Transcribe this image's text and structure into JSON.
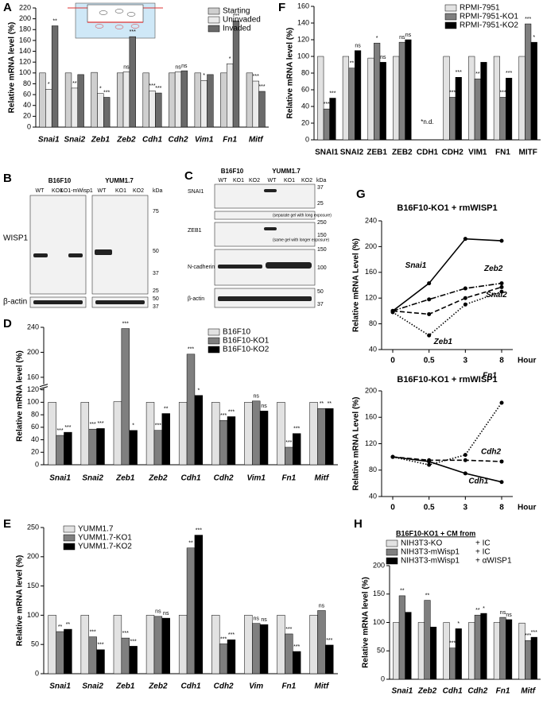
{
  "chart_data": [
    {
      "type": "bar",
      "panel": "A",
      "ylabel": "Relative mRNA level (%)",
      "legend": "upper right",
      "categories": [
        "Snai1",
        "Snai2",
        "Zeb1",
        "Zeb2",
        "Cdh1",
        "Cdh2",
        "Vim1",
        "Fn1",
        "Mitf"
      ],
      "ylim": [
        0,
        220
      ],
      "yticks": [
        0,
        20,
        40,
        60,
        80,
        100,
        120,
        140,
        160,
        180,
        200,
        220
      ],
      "series": [
        {
          "name": "Starting",
          "color": "#cfcfcf",
          "values": [
            100,
            100,
            101,
            100,
            100,
            100,
            100,
            100,
            100
          ],
          "sig": [
            null,
            null,
            null,
            null,
            null,
            null,
            null,
            null,
            null
          ]
        },
        {
          "name": "Uninvaded",
          "color": "#ebebeb",
          "values": [
            70,
            72,
            62,
            102,
            67,
            102,
            86,
            117,
            85
          ],
          "sig": [
            "*",
            "**",
            "*",
            "ns",
            "***",
            "ns",
            "*",
            "*",
            "***"
          ]
        },
        {
          "name": "Invaded",
          "color": "#6a6a6a",
          "values": [
            187,
            97,
            55,
            167,
            63,
            104,
            97,
            196,
            66
          ],
          "sig": [
            "**",
            null,
            "***",
            "***",
            "***",
            "ns",
            null,
            "***",
            "***"
          ]
        }
      ]
    },
    {
      "type": "bar",
      "panel": "D",
      "ylabel": "Relative mRNA level (%)",
      "legend": "upper right",
      "categories": [
        "Snai1",
        "Snai2",
        "Zeb1",
        "Zeb2",
        "Cdh1",
        "Cdh2",
        "Vim1",
        "Fn1",
        "Mitf"
      ],
      "ylim": [
        0,
        240
      ],
      "ybreak": [
        120,
        140
      ],
      "yticks": [
        0,
        20,
        40,
        60,
        80,
        100,
        120,
        160,
        200,
        240
      ],
      "series": [
        {
          "name": "B16F10",
          "color": "#e2e2e2",
          "values": [
            100,
            100,
            101,
            100,
            100,
            100,
            100,
            100,
            100
          ],
          "sig": [
            null,
            null,
            null,
            null,
            null,
            null,
            null,
            null,
            null
          ]
        },
        {
          "name": "B16F10-KO1",
          "color": "#7f7f7f",
          "values": [
            47,
            57,
            238,
            55,
            197,
            71,
            102,
            28,
            90
          ],
          "sig": [
            "***",
            "***",
            "***",
            "***",
            "***",
            "***",
            "ns",
            "***",
            "**"
          ]
        },
        {
          "name": "B16F10-KO2",
          "color": "#000000",
          "values": [
            52,
            58,
            55,
            82,
            111,
            77,
            86,
            50,
            90
          ],
          "sig": [
            "***",
            "***",
            "*",
            "**",
            "*",
            "***",
            "ns",
            "***",
            "**"
          ]
        }
      ]
    },
    {
      "type": "bar",
      "panel": "E",
      "ylabel": "Relative mRNA level (%)",
      "legend": "upper left",
      "categories": [
        "Snai1",
        "Snai2",
        "Zeb1",
        "Zeb2",
        "Cdh1",
        "Cdh2",
        "Vim",
        "Fn1",
        "Mitf"
      ],
      "ylim": [
        0,
        250
      ],
      "yticks": [
        0,
        50,
        100,
        150,
        200,
        250
      ],
      "series": [
        {
          "name": "YUMM1.7",
          "color": "#e2e2e2",
          "values": [
            100,
            100,
            100,
            100,
            100,
            100,
            100,
            100,
            100
          ],
          "sig": [
            null,
            null,
            null,
            null,
            null,
            null,
            null,
            null,
            null
          ]
        },
        {
          "name": "YUMM1.7-KO1",
          "color": "#7f7f7f",
          "values": [
            72,
            63,
            61,
            98,
            215,
            51,
            86,
            68,
            108
          ],
          "sig": [
            "**",
            "***",
            "***",
            "ns",
            "**",
            "***",
            "ns",
            "***",
            "ns"
          ]
        },
        {
          "name": "YUMM1.7-KO2",
          "color": "#000000",
          "values": [
            76,
            41,
            47,
            95,
            237,
            58,
            84,
            38,
            49
          ],
          "sig": [
            "**",
            "***",
            "***",
            "ns",
            "***",
            "***",
            "ns",
            "***",
            "***"
          ]
        }
      ]
    },
    {
      "type": "bar",
      "panel": "F",
      "ylabel": "Relative mRNA level (%)",
      "legend": "upper right",
      "categories": [
        "SNAI1",
        "SNAI2",
        "ZEB1",
        "ZEB2",
        "CDH1",
        "CDH2",
        "VIM1",
        "FN1",
        "MITF"
      ],
      "category_notes": [
        null,
        null,
        null,
        null,
        "*n.d.",
        null,
        null,
        null,
        null
      ],
      "ylim": [
        0,
        160
      ],
      "yticks": [
        0,
        20,
        40,
        60,
        80,
        100,
        120,
        140,
        160
      ],
      "series": [
        {
          "name": "RPMI-7951",
          "color": "#e2e2e2",
          "values": [
            100,
            100,
            98,
            100,
            null,
            100,
            100,
            100,
            100
          ],
          "sig": [
            null,
            null,
            null,
            null,
            null,
            null,
            null,
            null,
            null
          ]
        },
        {
          "name": "RPMI-7951-KO1",
          "color": "#7f7f7f",
          "values": [
            37,
            86,
            116,
            117,
            null,
            51,
            73,
            51,
            139
          ],
          "sig": [
            "***",
            "**",
            "*",
            "ns",
            null,
            "***",
            "**",
            "***",
            "***"
          ]
        },
        {
          "name": "RPMI-7951-KO2",
          "color": "#000000",
          "values": [
            50,
            107,
            93,
            120,
            null,
            75,
            93,
            74,
            117
          ],
          "sig": [
            "***",
            "ns",
            "ns",
            "ns",
            null,
            "***",
            null,
            "***",
            "*"
          ]
        }
      ]
    },
    {
      "type": "line",
      "panel": "G",
      "title": "B16F10-KO1 + rmWISP1",
      "ylabel": "Relative mRNA Level (%)",
      "xlabel": "Hour",
      "x": [
        "0",
        "0.5",
        "3",
        "8"
      ],
      "ylim": [
        40,
        240
      ],
      "yticks": [
        40,
        80,
        120,
        160,
        200,
        240
      ],
      "series": [
        {
          "name": "Snai1",
          "color": "#000000",
          "dash": "solid",
          "values": [
            100,
            143,
            212,
            209
          ]
        },
        {
          "name": "Zeb2",
          "color": "#000000",
          "dash": "dashdot",
          "values": [
            100,
            118,
            135,
            143
          ]
        },
        {
          "name": "Snai2",
          "color": "#000000",
          "dash": "dashed",
          "values": [
            100,
            95,
            120,
            137
          ]
        },
        {
          "name": "Zeb1",
          "color": "#000000",
          "dash": "dotted",
          "values": [
            98,
            62,
            110,
            130
          ]
        }
      ]
    },
    {
      "type": "line",
      "title": "B16F10-KO1 + rmWISP1",
      "ylabel": "Relative mRNA Level (%)",
      "xlabel": "Hour",
      "x": [
        "0",
        "0.5",
        "3",
        "8"
      ],
      "ylim": [
        40,
        200
      ],
      "yticks": [
        40,
        80,
        120,
        160,
        200
      ],
      "series": [
        {
          "name": "Fn1",
          "color": "#000000",
          "dash": "dotted",
          "values": [
            100,
            88,
            103,
            182
          ]
        },
        {
          "name": "Cdh2",
          "color": "#000000",
          "dash": "dashed",
          "values": [
            100,
            95,
            95,
            93
          ]
        },
        {
          "name": "Cdh1",
          "color": "#000000",
          "dash": "solid",
          "values": [
            100,
            93,
            75,
            62
          ]
        }
      ]
    },
    {
      "type": "bar",
      "panel": "H",
      "title": "B16F10-KO1 + CM from",
      "ylabel": "Relative mRNA level (%)",
      "legend": "top",
      "categories": [
        "Snai1",
        "Zeb2",
        "Cdh1",
        "Cdh2",
        "Fn1",
        "Mitf"
      ],
      "ylim": [
        0,
        200
      ],
      "yticks": [
        0,
        50,
        100,
        150,
        200
      ],
      "series": [
        {
          "name": "NIH3T3-KO",
          "treatment": "+ IC",
          "color": "#e2e2e2",
          "values": [
            100,
            100,
            100,
            100,
            100,
            99
          ],
          "sig": [
            null,
            null,
            null,
            null,
            null,
            null
          ]
        },
        {
          "name": "NIH3T3-mWisp1",
          "treatment": "+ IC",
          "color": "#7f7f7f",
          "values": [
            147,
            139,
            55,
            113,
            109,
            68
          ],
          "sig": [
            "**",
            "**",
            "***",
            "**",
            "ns",
            "***"
          ]
        },
        {
          "name": "NIH3T3-mWisp1",
          "treatment": "+ αWISP1",
          "color": "#000000",
          "values": [
            118,
            92,
            89,
            116,
            105,
            74
          ],
          "sig": [
            null,
            null,
            "*",
            "*",
            "ns",
            "***"
          ]
        }
      ]
    }
  ],
  "blots": [
    {
      "panel": "B",
      "groups": [
        "B16F10",
        "YUMM1.7"
      ],
      "lanes": [
        "WT",
        "KO1",
        "KO1-mWisp1",
        "WT",
        "KO1",
        "KO2"
      ],
      "unit": "kDa",
      "markers": [
        "75",
        "50",
        "37",
        "25",
        "50",
        "37"
      ],
      "rows": [
        "WISP1",
        "β-actin"
      ]
    },
    {
      "panel": "C",
      "groups": [
        "B16F10",
        "YUMM1.7"
      ],
      "lanes": [
        "WT",
        "KO1",
        "KO2",
        "WT",
        "KO1",
        "KO2"
      ],
      "unit": "kDa",
      "markers": [
        "37",
        "25",
        "250",
        "150",
        "150",
        "100",
        "50",
        "37"
      ],
      "rows": [
        "SNAI1",
        "ZEB1",
        "N-cadherin",
        "β-actin"
      ],
      "notes": [
        "(separate gel with long exposure)",
        "(same gel with longer exposure)"
      ]
    }
  ]
}
